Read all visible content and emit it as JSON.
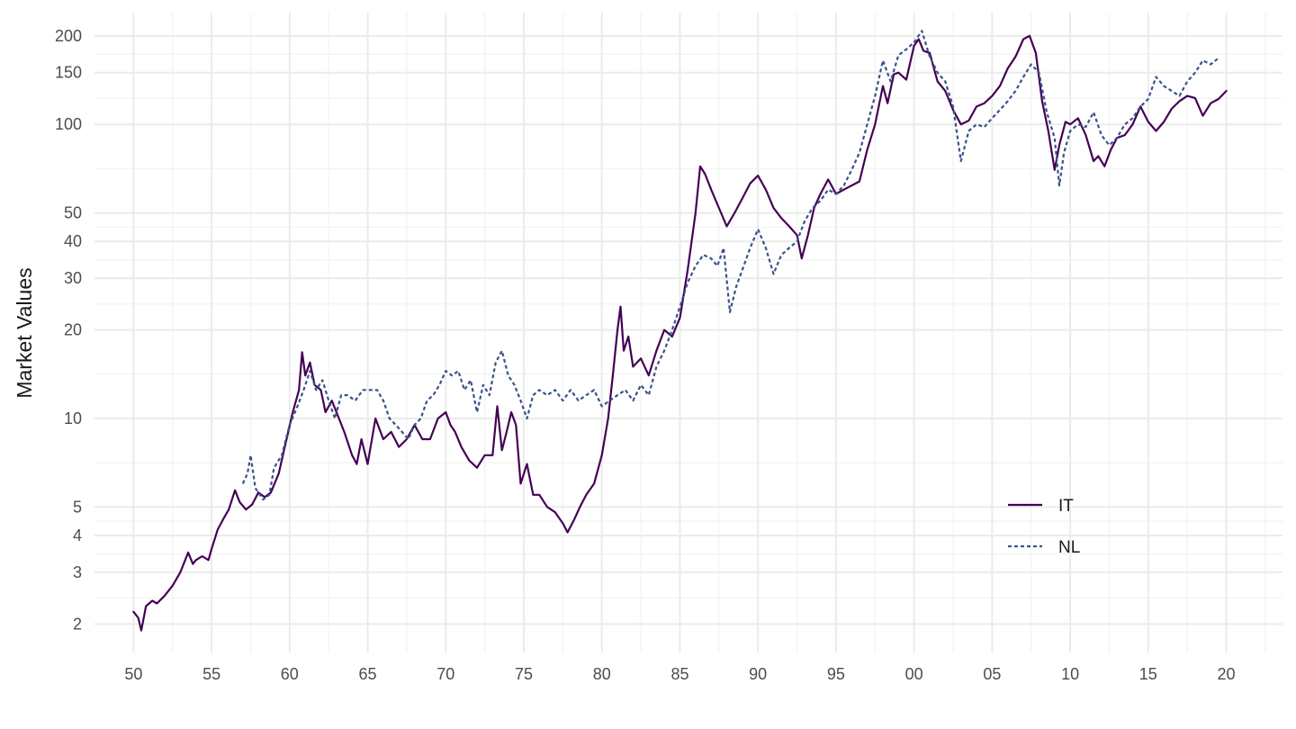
{
  "chart_data": {
    "type": "line",
    "title": "",
    "xlabel": "",
    "ylabel": "Market Values",
    "y_scale": "log",
    "ylim": [
      1.6,
      240
    ],
    "xlim": [
      1947.5,
      2023.6
    ],
    "grid": true,
    "legend_position": "bottom-right",
    "x_ticks": [
      {
        "value": 1950,
        "label": "50"
      },
      {
        "value": 1955,
        "label": "55"
      },
      {
        "value": 1960,
        "label": "60"
      },
      {
        "value": 1965,
        "label": "65"
      },
      {
        "value": 1970,
        "label": "70"
      },
      {
        "value": 1975,
        "label": "75"
      },
      {
        "value": 1980,
        "label": "80"
      },
      {
        "value": 1985,
        "label": "85"
      },
      {
        "value": 1990,
        "label": "90"
      },
      {
        "value": 1995,
        "label": "95"
      },
      {
        "value": 2000,
        "label": "00"
      },
      {
        "value": 2005,
        "label": "05"
      },
      {
        "value": 2010,
        "label": "10"
      },
      {
        "value": 2015,
        "label": "15"
      },
      {
        "value": 2020,
        "label": "20"
      }
    ],
    "y_ticks": [
      {
        "value": 2,
        "label": "2"
      },
      {
        "value": 3,
        "label": "3"
      },
      {
        "value": 4,
        "label": "4"
      },
      {
        "value": 5,
        "label": "5"
      },
      {
        "value": 10,
        "label": "10"
      },
      {
        "value": 20,
        "label": "20"
      },
      {
        "value": 30,
        "label": "30"
      },
      {
        "value": 40,
        "label": "40"
      },
      {
        "value": 50,
        "label": "50"
      },
      {
        "value": 100,
        "label": "100"
      },
      {
        "value": 150,
        "label": "150"
      },
      {
        "value": 200,
        "label": "200"
      }
    ],
    "series": [
      {
        "name": "IT",
        "color": "#440154",
        "dash": "solid",
        "x": [
          1950.0,
          1950.3,
          1950.5,
          1950.8,
          1951.2,
          1951.5,
          1952.0,
          1952.5,
          1953.0,
          1953.5,
          1953.8,
          1954.0,
          1954.4,
          1954.8,
          1955.0,
          1955.4,
          1955.8,
          1956.1,
          1956.5,
          1956.8,
          1957.2,
          1957.6,
          1958.0,
          1958.4,
          1958.8,
          1959.3,
          1959.8,
          1960.2,
          1960.6,
          1960.8,
          1961.0,
          1961.3,
          1961.6,
          1962.0,
          1962.3,
          1962.7,
          1963.0,
          1963.5,
          1964.0,
          1964.3,
          1964.6,
          1965.0,
          1965.5,
          1966.0,
          1966.5,
          1967.0,
          1967.5,
          1968.0,
          1968.5,
          1969.0,
          1969.5,
          1970.0,
          1970.3,
          1970.6,
          1971.0,
          1971.5,
          1972.0,
          1972.5,
          1973.0,
          1973.3,
          1973.6,
          1973.9,
          1974.2,
          1974.5,
          1974.8,
          1975.2,
          1975.6,
          1976.0,
          1976.5,
          1977.0,
          1977.5,
          1977.8,
          1978.2,
          1978.6,
          1979.0,
          1979.5,
          1980.0,
          1980.4,
          1980.7,
          1981.0,
          1981.2,
          1981.4,
          1981.7,
          1982.0,
          1982.5,
          1983.0,
          1983.5,
          1984.0,
          1984.5,
          1985.0,
          1985.5,
          1986.0,
          1986.3,
          1986.6,
          1987.0,
          1987.5,
          1988.0,
          1988.5,
          1989.0,
          1989.5,
          1990.0,
          1990.5,
          1991.0,
          1991.5,
          1992.0,
          1992.5,
          1992.8,
          1993.2,
          1993.6,
          1994.0,
          1994.5,
          1995.0,
          1995.5,
          1996.0,
          1996.5,
          1997.0,
          1997.5,
          1998.0,
          1998.3,
          1998.7,
          1999.0,
          1999.5,
          2000.0,
          2000.3,
          2000.6,
          2001.0,
          2001.5,
          2002.0,
          2002.5,
          2003.0,
          2003.5,
          2004.0,
          2004.5,
          2005.0,
          2005.5,
          2006.0,
          2006.5,
          2007.0,
          2007.4,
          2007.8,
          2008.2,
          2008.6,
          2009.0,
          2009.3,
          2009.7,
          2010.0,
          2010.5,
          2011.0,
          2011.5,
          2011.8,
          2012.2,
          2012.6,
          2013.0,
          2013.5,
          2014.0,
          2014.5,
          2015.0,
          2015.5,
          2016.0,
          2016.5,
          2017.0,
          2017.5,
          2018.0,
          2018.5,
          2019.0,
          2019.5,
          2020.0
        ],
        "values": [
          2.2,
          2.1,
          1.9,
          2.3,
          2.4,
          2.35,
          2.5,
          2.7,
          3.0,
          3.5,
          3.2,
          3.3,
          3.4,
          3.3,
          3.6,
          4.2,
          4.6,
          4.9,
          5.7,
          5.2,
          4.9,
          5.1,
          5.6,
          5.4,
          5.6,
          6.5,
          8.5,
          10.5,
          12.5,
          16.8,
          14.0,
          15.5,
          13.0,
          12.5,
          10.5,
          11.5,
          10.5,
          9.0,
          7.5,
          7.0,
          8.5,
          7.0,
          10.0,
          8.5,
          9.0,
          8.0,
          8.5,
          9.5,
          8.5,
          8.5,
          10.0,
          10.5,
          9.5,
          9.0,
          8.0,
          7.2,
          6.8,
          7.5,
          7.5,
          11.0,
          7.8,
          9.0,
          10.5,
          9.5,
          6.0,
          7.0,
          5.5,
          5.5,
          5.0,
          4.8,
          4.4,
          4.1,
          4.5,
          5.0,
          5.5,
          6.0,
          7.5,
          10.0,
          14.0,
          20.0,
          24.0,
          17.0,
          19.0,
          15.0,
          16.0,
          14.0,
          17.0,
          20.0,
          19.0,
          22.0,
          32.0,
          50.0,
          72.0,
          68.0,
          60.0,
          52.0,
          45.0,
          50.0,
          56.0,
          63.0,
          67.0,
          60.0,
          52.0,
          48.0,
          45.0,
          42.0,
          35.0,
          42.0,
          52.0,
          58.0,
          65.0,
          58.0,
          60.0,
          62.0,
          64.0,
          82.0,
          100.0,
          135.0,
          118.0,
          148.0,
          150.0,
          142.0,
          185.0,
          195.0,
          178.0,
          175.0,
          140.0,
          130.0,
          112.0,
          100.0,
          103.0,
          115.0,
          118.0,
          125.0,
          135.0,
          155.0,
          170.0,
          195.0,
          200.0,
          175.0,
          120.0,
          95.0,
          70.0,
          85.0,
          102.0,
          100.0,
          105.0,
          92.0,
          75.0,
          78.0,
          72.0,
          82.0,
          90.0,
          92.0,
          100.0,
          115.0,
          102.0,
          95.0,
          102.0,
          113.0,
          120.0,
          125.0,
          123.0,
          107.0,
          118.0,
          122.0,
          130.0
        ]
      },
      {
        "name": "NL",
        "color": "#3b528b",
        "dash": "dashed",
        "x": [
          1957.0,
          1957.3,
          1957.5,
          1957.8,
          1958.3,
          1958.7,
          1959.0,
          1959.5,
          1960.0,
          1960.5,
          1960.9,
          1961.3,
          1961.7,
          1962.1,
          1962.5,
          1962.9,
          1963.3,
          1963.7,
          1964.2,
          1964.7,
          1965.2,
          1965.6,
          1966.0,
          1966.4,
          1966.8,
          1967.2,
          1967.6,
          1968.0,
          1968.4,
          1968.8,
          1969.2,
          1969.6,
          1970.0,
          1970.4,
          1970.8,
          1971.2,
          1971.6,
          1972.0,
          1972.4,
          1972.8,
          1973.2,
          1973.6,
          1974.0,
          1974.4,
          1974.8,
          1975.2,
          1975.6,
          1976.0,
          1976.5,
          1977.0,
          1977.5,
          1978.0,
          1978.5,
          1979.0,
          1979.5,
          1980.0,
          1980.5,
          1981.0,
          1981.5,
          1982.0,
          1982.5,
          1983.0,
          1983.5,
          1984.0,
          1984.5,
          1985.0,
          1985.5,
          1986.0,
          1986.5,
          1987.0,
          1987.4,
          1987.8,
          1988.2,
          1988.6,
          1989.0,
          1989.5,
          1990.0,
          1990.5,
          1991.0,
          1991.5,
          1992.0,
          1992.5,
          1993.0,
          1993.5,
          1994.0,
          1994.5,
          1995.0,
          1995.5,
          1996.0,
          1996.5,
          1997.0,
          1997.5,
          1998.0,
          1998.5,
          1999.0,
          1999.5,
          2000.0,
          2000.5,
          2001.0,
          2001.5,
          2002.0,
          2002.5,
          2003.0,
          2003.5,
          2004.0,
          2004.5,
          2005.0,
          2005.5,
          2006.0,
          2006.5,
          2007.0,
          2007.5,
          2008.0,
          2008.5,
          2009.0,
          2009.3,
          2009.6,
          2010.0,
          2010.5,
          2011.0,
          2011.5,
          2012.0,
          2012.5,
          2013.0,
          2013.5,
          2014.0,
          2014.5,
          2015.0,
          2015.5,
          2016.0,
          2016.5,
          2017.0,
          2017.5,
          2018.0,
          2018.5,
          2019.0,
          2019.5
        ],
        "values": [
          6.0,
          6.5,
          7.5,
          5.8,
          5.3,
          5.5,
          6.8,
          7.5,
          9.5,
          11.0,
          12.5,
          14.5,
          12.5,
          13.5,
          11.5,
          10.0,
          12.0,
          12.0,
          11.5,
          12.5,
          12.5,
          12.5,
          11.5,
          10.0,
          9.5,
          9.0,
          8.5,
          9.5,
          10.0,
          11.5,
          12.0,
          13.0,
          14.5,
          14.0,
          14.5,
          12.5,
          13.5,
          10.5,
          13.0,
          12.0,
          15.5,
          17.0,
          14.0,
          13.0,
          11.5,
          10.0,
          12.0,
          12.5,
          12.0,
          12.5,
          11.5,
          12.5,
          11.5,
          12.0,
          12.5,
          11.0,
          11.5,
          12.0,
          12.5,
          11.5,
          13.0,
          12.0,
          15.0,
          17.0,
          20.0,
          24.0,
          29.0,
          33.0,
          36.0,
          35.0,
          33.0,
          38.0,
          23.0,
          28.0,
          32.0,
          38.0,
          44.0,
          38.0,
          31.0,
          36.0,
          38.0,
          40.0,
          47.0,
          52.0,
          55.0,
          60.0,
          58.0,
          62.0,
          70.0,
          80.0,
          100.0,
          125.0,
          165.0,
          140.0,
          172.0,
          180.0,
          190.0,
          208.0,
          170.0,
          150.0,
          140.0,
          115.0,
          75.0,
          95.0,
          100.0,
          98.0,
          105.0,
          112.0,
          120.0,
          130.0,
          145.0,
          160.0,
          150.0,
          110.0,
          90.0,
          62.0,
          80.0,
          95.0,
          100.0,
          98.0,
          110.0,
          92.0,
          85.0,
          90.0,
          100.0,
          105.0,
          115.0,
          122.0,
          145.0,
          135.0,
          130.0,
          125.0,
          140.0,
          150.0,
          165.0,
          160.0,
          168.0
        ]
      }
    ]
  }
}
